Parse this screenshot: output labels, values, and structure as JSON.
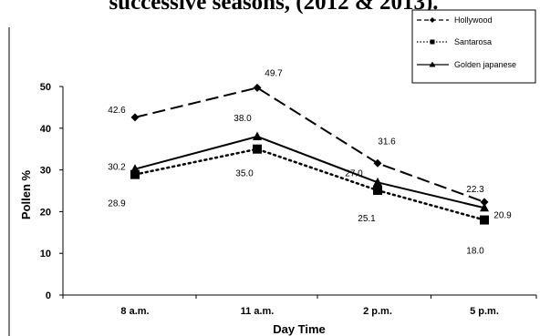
{
  "chart_data": {
    "type": "line",
    "title": "successive seasons, (2012 & 2013).",
    "xlabel": "Day Time",
    "ylabel": "Pollen %",
    "categories": [
      "8 a.m.",
      "11 a.m.",
      "2 p.m.",
      "5 p.m."
    ],
    "ylim": [
      0,
      50
    ],
    "yticks": [
      0,
      10,
      20,
      30,
      40,
      50
    ],
    "grid": false,
    "legend_position": "top-right",
    "series": [
      {
        "name": "Hollywood",
        "values": [
          42.6,
          49.7,
          31.6,
          22.3
        ],
        "labels": [
          "42.6",
          "49.7",
          "31.6",
          "22.3"
        ],
        "line_style": "dashed",
        "marker": "diamond",
        "color": "#000000"
      },
      {
        "name": "Santarosa",
        "values": [
          28.9,
          35.0,
          25.1,
          18.0
        ],
        "labels": [
          "28.9",
          "35.0",
          "25.1",
          "18.0"
        ],
        "line_style": "dotted",
        "marker": "square",
        "color": "#000000"
      },
      {
        "name": "Golden japanese",
        "values": [
          30.2,
          38.0,
          27.0,
          20.9
        ],
        "labels": [
          "30.2",
          "38.0",
          "27.0",
          "20.9"
        ],
        "line_style": "solid",
        "marker": "triangle",
        "color": "#000000"
      }
    ]
  }
}
